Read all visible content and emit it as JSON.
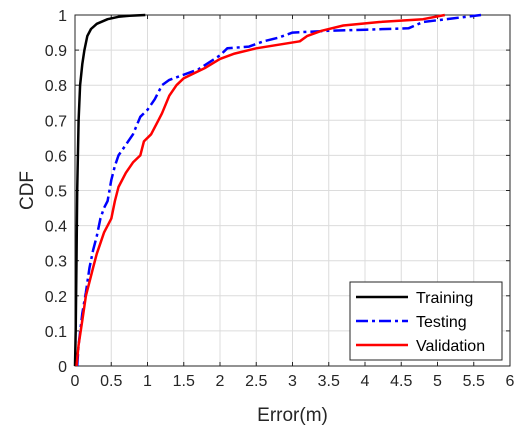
{
  "chart_data": {
    "type": "line",
    "title": "",
    "xlabel": "Error(m)",
    "ylabel": "CDF",
    "xlim": [
      0,
      6
    ],
    "ylim": [
      0,
      1
    ],
    "x_ticks": [
      "0",
      "0.5",
      "1",
      "1.5",
      "2",
      "2.5",
      "3",
      "3.5",
      "4",
      "4.5",
      "5",
      "5.5",
      "6"
    ],
    "y_ticks": [
      "0",
      "0.1",
      "0.2",
      "0.3",
      "0.4",
      "0.5",
      "0.6",
      "0.7",
      "0.8",
      "0.9",
      "1"
    ],
    "grid": true,
    "legend_position": "bottom-right",
    "series": [
      {
        "name": "Training",
        "color": "#000000",
        "style": "solid",
        "points": [
          [
            0,
            0
          ],
          [
            0.01,
            0.1
          ],
          [
            0.02,
            0.3
          ],
          [
            0.03,
            0.5
          ],
          [
            0.05,
            0.7
          ],
          [
            0.07,
            0.8
          ],
          [
            0.1,
            0.86
          ],
          [
            0.13,
            0.9
          ],
          [
            0.17,
            0.94
          ],
          [
            0.22,
            0.96
          ],
          [
            0.3,
            0.975
          ],
          [
            0.45,
            0.988
          ],
          [
            0.6,
            0.995
          ],
          [
            0.75,
            0.998
          ],
          [
            0.97,
            1.0
          ]
        ]
      },
      {
        "name": "Testing",
        "color": "#0000ff",
        "style": "dashdot",
        "points": [
          [
            0.03,
            0
          ],
          [
            0.05,
            0.06
          ],
          [
            0.1,
            0.15
          ],
          [
            0.15,
            0.21
          ],
          [
            0.2,
            0.28
          ],
          [
            0.25,
            0.33
          ],
          [
            0.3,
            0.37
          ],
          [
            0.35,
            0.42
          ],
          [
            0.4,
            0.45
          ],
          [
            0.45,
            0.47
          ],
          [
            0.5,
            0.53
          ],
          [
            0.55,
            0.57
          ],
          [
            0.6,
            0.6
          ],
          [
            0.7,
            0.63
          ],
          [
            0.8,
            0.66
          ],
          [
            0.9,
            0.71
          ],
          [
            1.0,
            0.73
          ],
          [
            1.1,
            0.76
          ],
          [
            1.2,
            0.8
          ],
          [
            1.3,
            0.815
          ],
          [
            1.5,
            0.83
          ],
          [
            1.7,
            0.845
          ],
          [
            1.85,
            0.865
          ],
          [
            2.0,
            0.885
          ],
          [
            2.1,
            0.905
          ],
          [
            2.4,
            0.91
          ],
          [
            2.6,
            0.925
          ],
          [
            2.8,
            0.935
          ],
          [
            3.0,
            0.95
          ],
          [
            3.5,
            0.955
          ],
          [
            4.0,
            0.958
          ],
          [
            4.6,
            0.962
          ],
          [
            4.8,
            0.98
          ],
          [
            5.2,
            0.99
          ],
          [
            5.6,
            1.0
          ]
        ]
      },
      {
        "name": "Validation",
        "color": "#ff0000",
        "style": "solid",
        "points": [
          [
            0.02,
            0
          ],
          [
            0.05,
            0.06
          ],
          [
            0.1,
            0.13
          ],
          [
            0.15,
            0.2
          ],
          [
            0.2,
            0.24
          ],
          [
            0.25,
            0.28
          ],
          [
            0.3,
            0.32
          ],
          [
            0.35,
            0.35
          ],
          [
            0.4,
            0.38
          ],
          [
            0.5,
            0.42
          ],
          [
            0.55,
            0.47
          ],
          [
            0.6,
            0.51
          ],
          [
            0.7,
            0.55
          ],
          [
            0.8,
            0.58
          ],
          [
            0.9,
            0.6
          ],
          [
            0.95,
            0.64
          ],
          [
            1.05,
            0.66
          ],
          [
            1.15,
            0.7
          ],
          [
            1.2,
            0.72
          ],
          [
            1.3,
            0.77
          ],
          [
            1.4,
            0.8
          ],
          [
            1.5,
            0.82
          ],
          [
            1.6,
            0.83
          ],
          [
            1.8,
            0.85
          ],
          [
            2.0,
            0.875
          ],
          [
            2.2,
            0.89
          ],
          [
            2.5,
            0.905
          ],
          [
            2.8,
            0.915
          ],
          [
            3.1,
            0.925
          ],
          [
            3.2,
            0.94
          ],
          [
            3.4,
            0.955
          ],
          [
            3.7,
            0.97
          ],
          [
            4.2,
            0.98
          ],
          [
            4.8,
            0.988
          ],
          [
            5.1,
            1.0
          ]
        ]
      }
    ]
  }
}
